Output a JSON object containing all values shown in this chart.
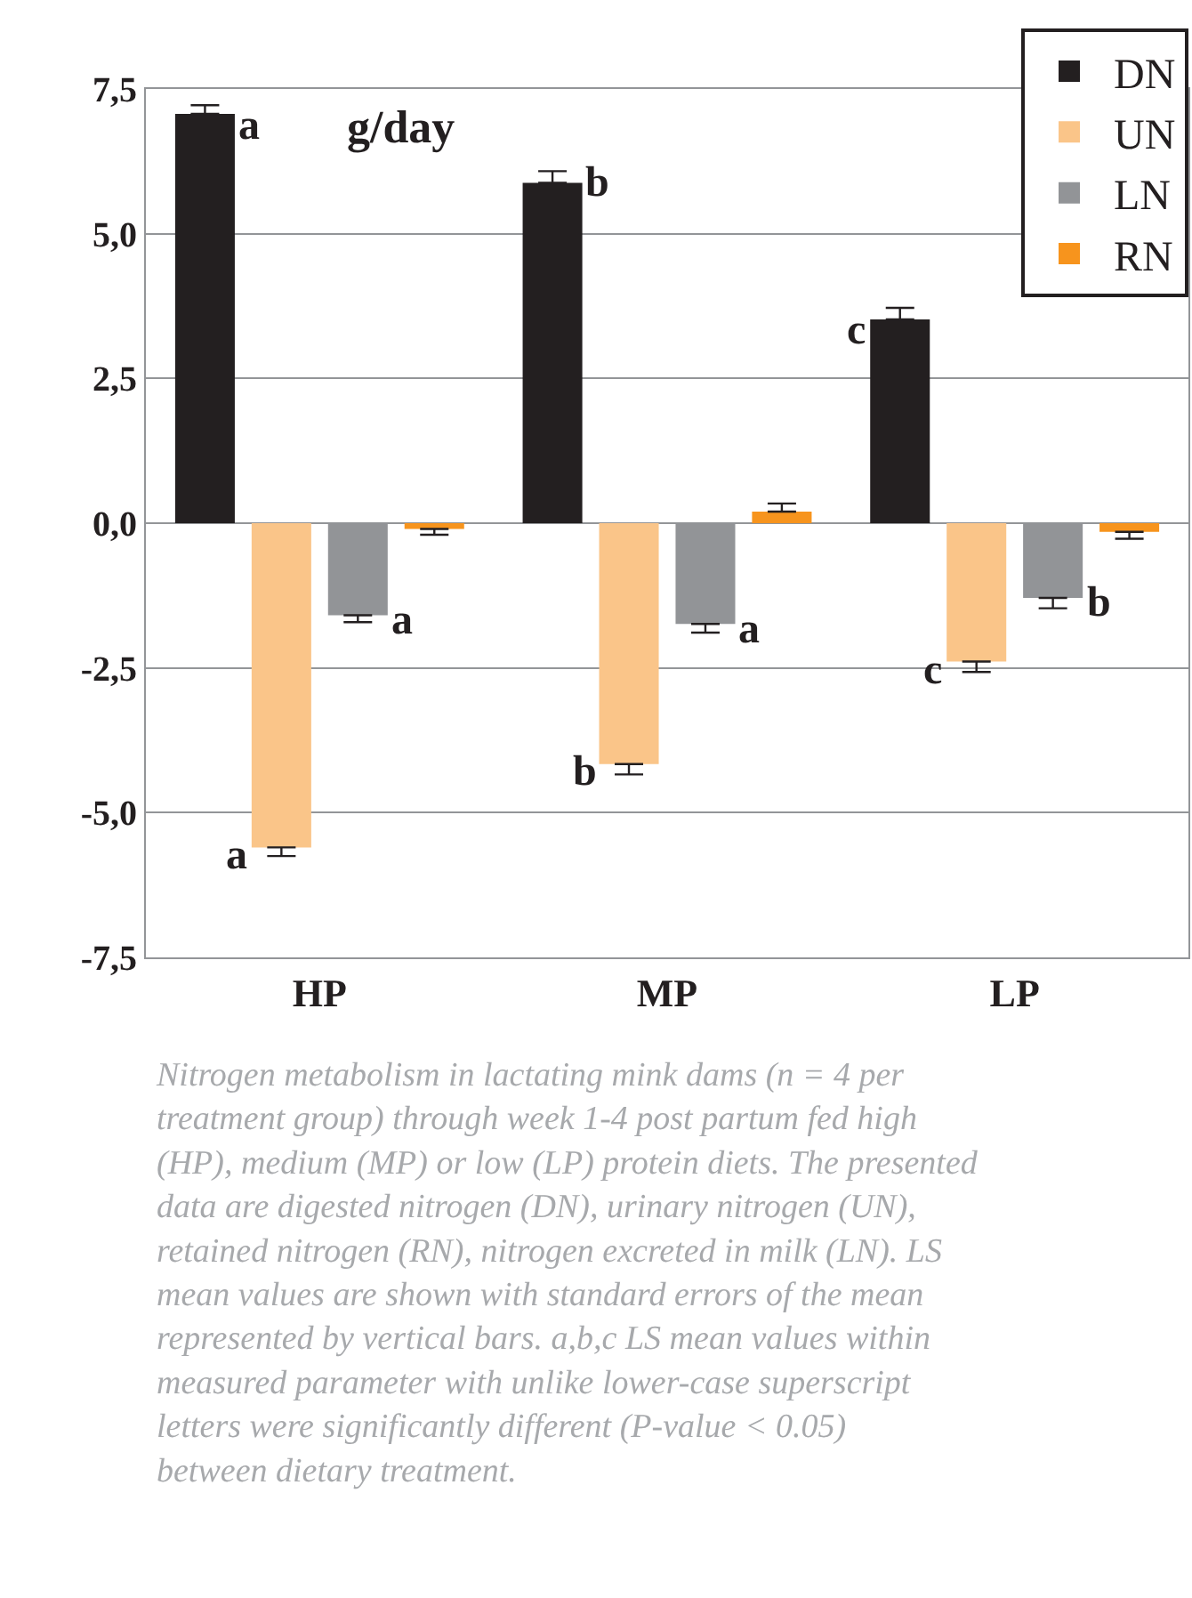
{
  "chart_data": {
    "type": "bar",
    "categories": [
      "HP",
      "MP",
      "LP"
    ],
    "ylabel": "g/day",
    "series": [
      {
        "name": "DN",
        "color": "#231f20",
        "values": [
          7.07,
          5.88,
          3.52
        ],
        "errors": [
          0.15,
          0.2,
          0.2
        ]
      },
      {
        "name": "UN",
        "color": "#fac589",
        "values": [
          -5.6,
          -4.16,
          -2.39
        ],
        "errors": [
          0.15,
          0.18,
          0.18
        ]
      },
      {
        "name": "LN",
        "color": "#929497",
        "values": [
          -1.59,
          -1.74,
          -1.29
        ],
        "errors": [
          0.12,
          0.15,
          0.18
        ]
      },
      {
        "name": "RN",
        "color": "#f7941d",
        "values": [
          -0.1,
          0.2,
          -0.15
        ],
        "errors": [
          0.1,
          0.14,
          0.12
        ]
      }
    ],
    "ylim": [
      -7.5,
      7.5
    ],
    "yticks": [
      {
        "value": -7.5,
        "label": "-7,5"
      },
      {
        "value": -5,
        "label": "-5,0"
      },
      {
        "value": -2.5,
        "label": "-2,5"
      },
      {
        "value": 0,
        "label": "0,0"
      },
      {
        "value": 2.5,
        "label": "2,5"
      },
      {
        "value": 5,
        "label": "5,0"
      },
      {
        "value": 7.5,
        "label": "7,5"
      }
    ],
    "grid": "y",
    "legend": "top right",
    "annotations": [
      "a",
      "b",
      "c",
      {
        "text": "a",
        "x": "HP",
        "y": -5.6
      },
      {
        "text": "b",
        "x": "MP",
        "y": -4.16
      },
      {
        "text": "c",
        "x": "LP",
        "y": -2.39
      },
      {
        "text": "a",
        "x": "HP",
        "y": -1.59
      },
      {
        "text": "a",
        "x": "MP",
        "y": -1.74
      },
      {
        "text": "b",
        "x": "LP",
        "y": -1.29
      },
      "Nitrogen metabolism in lactating mink dams (n = 4 per treatment group) through week 1-4 post partum fed high (HP), medium (MP) or low (LP) protein diets. The presented data are digested nitrogen (DN), urinary nitrogen (UN), retained nitrogen (RN), nitrogen excreted in milk (LN). LS mean values are shown with standard errors of the mean represented by vertical bars. a,b,c LS mean values within measured parameter with unlike lower-case superscript letters were significantly different (P-value < 0.05) between dietary treatment."
    ]
  }
}
